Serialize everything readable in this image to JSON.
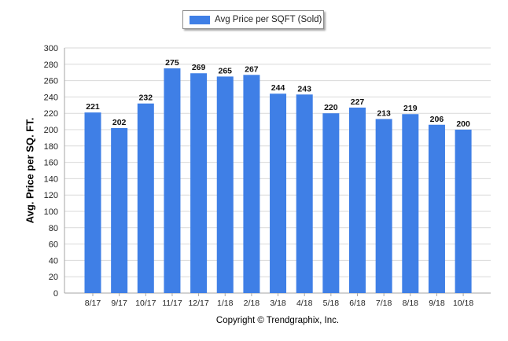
{
  "chart_data": {
    "type": "bar",
    "categories": [
      "8/17",
      "9/17",
      "10/17",
      "11/17",
      "12/17",
      "1/18",
      "2/18",
      "3/18",
      "4/18",
      "5/18",
      "6/18",
      "7/18",
      "8/18",
      "9/18",
      "10/18"
    ],
    "series": [
      {
        "name": "Avg Price per SQFT (Sold)",
        "values": [
          221,
          202,
          232,
          275,
          269,
          265,
          267,
          244,
          243,
          220,
          227,
          213,
          219,
          206,
          200
        ],
        "color": "#3f7fe6"
      }
    ],
    "title": "",
    "xlabel": "",
    "ylabel": "Avg. Price per SQ. FT.",
    "ylim": [
      0,
      300
    ],
    "yticks": [
      0,
      20,
      40,
      60,
      80,
      100,
      120,
      140,
      160,
      180,
      200,
      220,
      240,
      260,
      280,
      300
    ],
    "grid": true,
    "legend_position": "top-center",
    "data_labels": true
  },
  "footer": {
    "copyright": "Copyright © Trendgraphix, Inc."
  }
}
